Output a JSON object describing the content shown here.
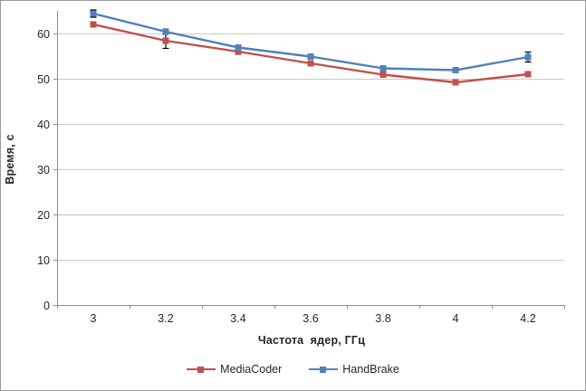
{
  "chart_data": {
    "type": "line",
    "title": "",
    "xlabel": "Частота  ядер, ГГц",
    "ylabel": "Время, с",
    "x": [
      3,
      3.2,
      3.4,
      3.6,
      3.8,
      4,
      4.2
    ],
    "x_tick_labels": [
      "3",
      "3.2",
      "3.4",
      "3.6",
      "3.8",
      "4",
      "4.2"
    ],
    "y_ticks": [
      0,
      10,
      20,
      30,
      40,
      50,
      60
    ],
    "ylim": [
      0,
      65
    ],
    "grid": "horizontal",
    "legend_position": "bottom",
    "series": [
      {
        "name": "MediaCoder",
        "color": "#C0504D",
        "marker": "square",
        "values": [
          62.0,
          58.4,
          56.0,
          53.4,
          50.9,
          49.2,
          51.0
        ],
        "error": [
          0.5,
          1.7,
          0.6,
          0.5,
          0.4,
          0.5,
          0.5
        ]
      },
      {
        "name": "HandBrake",
        "color": "#4F81BD",
        "marker": "square",
        "values": [
          64.4,
          60.4,
          56.9,
          54.9,
          52.3,
          51.9,
          54.8
        ],
        "error": [
          0.8,
          0.6,
          0.5,
          0.5,
          0.5,
          0.4,
          1.1
        ]
      }
    ],
    "error_bar_color": "#000000"
  },
  "colors": {
    "axis_line": "#8c8c8c",
    "gridline": "#c9c9c9",
    "tick_text": "#262626",
    "background": "#ffffff",
    "frame_border": "#9a9a9a"
  }
}
